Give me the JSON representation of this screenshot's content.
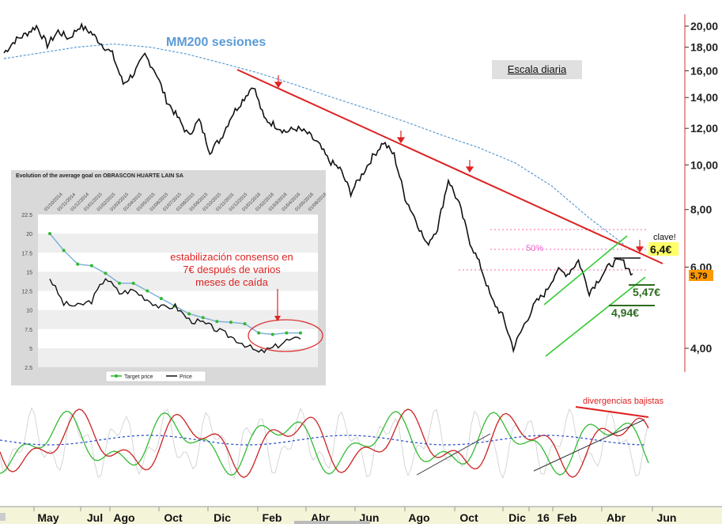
{
  "annotations": {
    "mm200": "MM200 sesiones",
    "escala": "Escala diaria",
    "fib50": "50%",
    "clave_label": "clave!",
    "clave_value": "6,4€",
    "last_price": "5,79",
    "support1": "5,47€",
    "support2": "4,94€",
    "divergencias": "divergencias bajistas"
  },
  "colors": {
    "price": "#111111",
    "ma200": "#5b9bd5",
    "trend_red": "#dd2222",
    "channel_green": "#33cc33",
    "support_green": "#2e6b1f",
    "highlight_yellow": "#ffff66",
    "last_price_bg": "#ff9900"
  },
  "chart_data": [
    {
      "type": "line",
      "scale": "log",
      "y_ticks": [
        "20,00",
        "18,00",
        "16,00",
        "14,00",
        "12,00",
        "10,00",
        "8,00",
        "6,00",
        "4,00"
      ],
      "y_tick_values": [
        20,
        18,
        16,
        14,
        12,
        10,
        8,
        6,
        4
      ],
      "x_labels": [
        "May",
        "Jul",
        "Ago",
        "Oct",
        "Dic",
        "Feb",
        "Abr",
        "Jun",
        "Ago",
        "Oct",
        "Dic",
        "16",
        "Feb",
        "Abr",
        "Jun"
      ],
      "series": [
        {
          "values": [
            17.5,
            18.6,
            19.2,
            20.0,
            18.2,
            19.5,
            18.8,
            20.0,
            19.4,
            18.3,
            17.4,
            15.0,
            15.8,
            17.3,
            15.9,
            13.8,
            12.7,
            11.6,
            12.5,
            10.7,
            11.4,
            12.8,
            13.8,
            14.9,
            12.6,
            12.2,
            11.8,
            12.0,
            11.7,
            11.1,
            10.2,
            9.8,
            8.7,
            9.5,
            10.4,
            11.2,
            10.5,
            8.5,
            7.6,
            6.7,
            7.3,
            9.3,
            8.2,
            6.8,
            6.0,
            5.1,
            4.7,
            4.0,
            4.5,
            5.0,
            5.3,
            5.9,
            5.8,
            6.2,
            5.3,
            5.7,
            6.1,
            6.2,
            5.8
          ]
        },
        {
          "values": [
            17.0,
            17.5,
            18.0,
            18.3,
            18.0,
            17.4,
            16.6,
            15.8,
            14.9,
            14.0,
            13.2,
            12.4,
            11.6,
            10.9,
            10.1,
            9.0,
            7.7,
            6.7
          ]
        }
      ]
    },
    {
      "type": "line",
      "title": "Evolution of the average goal on OBRASCON HUARTE LAIN SA",
      "y_ticks": [
        "22.5",
        "20",
        "17.5",
        "15",
        "12.5",
        "10",
        "7.5",
        "5",
        "2.5"
      ],
      "y_tick_values": [
        22.5,
        20,
        17.5,
        15,
        12.5,
        10,
        7.5,
        5,
        2.5
      ],
      "ylim": [
        2.5,
        22.5
      ],
      "x_labels": [
        "01/10/2014",
        "01/11/2014",
        "01/12/2014",
        "01/01/2015",
        "01/02/2015",
        "01/03/2015",
        "01/04/2015",
        "01/05/2015",
        "01/06/2015",
        "01/07/2015",
        "01/08/2015",
        "01/09/2015",
        "01/10/2015",
        "01/11/2015",
        "01/12/2015",
        "01/01/2016",
        "01/02/2016",
        "01/03/2016",
        "01/04/2016",
        "01/05/2016",
        "01/06/2016"
      ],
      "annotation": "estabilización consenso en 7€ después de varios meses de caída",
      "annotation_lines": [
        "estabilización consenso en",
        "7€ después de varios",
        "meses de caída"
      ],
      "legend": [
        "Target price",
        "Price"
      ],
      "series": [
        {
          "name": "Target price",
          "values": [
            20.0,
            17.8,
            16.0,
            15.8,
            14.8,
            13.5,
            13.5,
            12.5,
            11.5,
            10.5,
            9.5,
            9.0,
            8.5,
            8.4,
            8.2,
            7.0,
            6.8,
            7.0,
            7.0
          ]
        },
        {
          "name": "Price",
          "values": [
            14.2,
            10.8,
            10.5,
            11.2,
            14.3,
            12.2,
            12.6,
            11.4,
            10.3,
            10.5,
            8.7,
            8.3,
            7.4,
            6.5,
            5.5,
            4.4,
            5.0,
            6.0,
            6.2
          ]
        }
      ]
    }
  ]
}
